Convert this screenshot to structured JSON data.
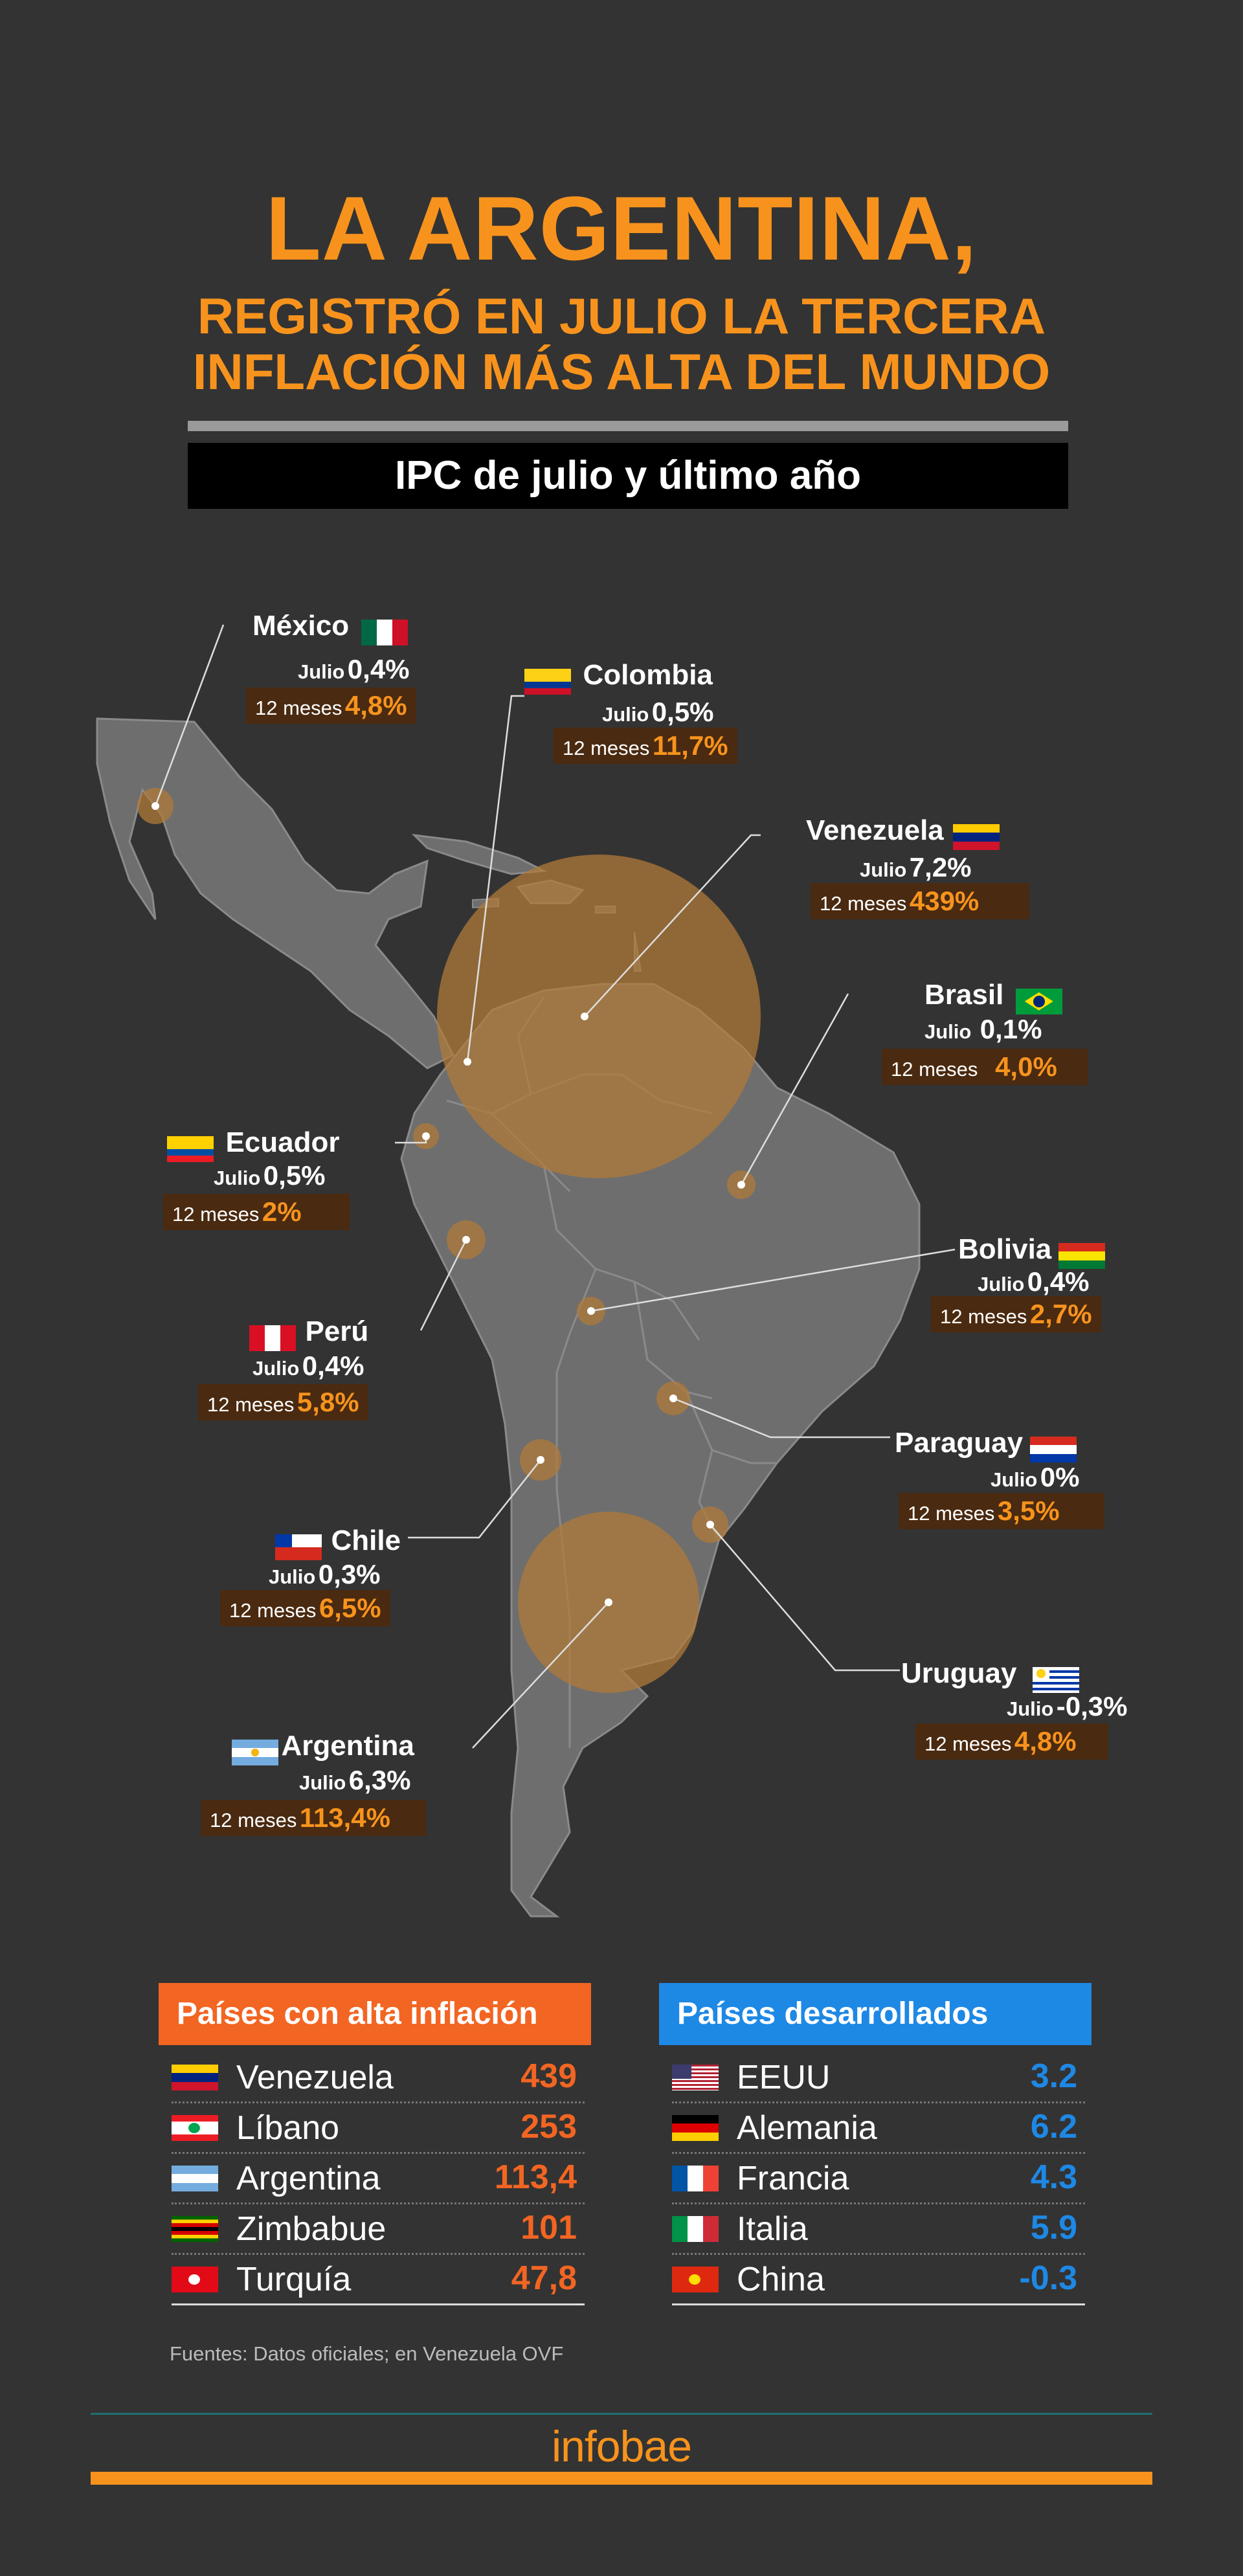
{
  "title": {
    "line1": "LA ARGENTINA,",
    "line2": "REGISTRÓ EN JULIO LA TERCERA",
    "line3": "INFLACIÓN MÁS ALTA DEL MUNDO"
  },
  "subtitle": "IPC de julio y último año",
  "labels": {
    "julio": "Julio",
    "doce_meses": "12 meses"
  },
  "countries": {
    "mexico": {
      "name": "México",
      "julio": "0,4%",
      "doce": "4,8%"
    },
    "colombia": {
      "name": "Colombia",
      "julio": "0,5%",
      "doce": "11,7%"
    },
    "venezuela": {
      "name": "Venezuela",
      "julio": "7,2%",
      "doce": "439%"
    },
    "brasil": {
      "name": "Brasil",
      "julio": "0,1%",
      "doce": "4,0%"
    },
    "ecuador": {
      "name": "Ecuador",
      "julio": "0,5%",
      "doce": "2%"
    },
    "bolivia": {
      "name": "Bolivia",
      "julio": "0,4%",
      "doce": "2,7%"
    },
    "peru": {
      "name": "Perú",
      "julio": "0,4%",
      "doce": "5,8%"
    },
    "paraguay": {
      "name": "Paraguay",
      "julio": "0%",
      "doce": "3,5%"
    },
    "chile": {
      "name": "Chile",
      "julio": "0,3%",
      "doce": "6,5%"
    },
    "uruguay": {
      "name": "Uruguay",
      "julio": "-0,3%",
      "doce": "4,8%"
    },
    "argentina": {
      "name": "Argentina",
      "julio": "6,3%",
      "doce": "113,4%"
    }
  },
  "high_inflation": {
    "header": "Países con alta inflación",
    "color": "#f26522",
    "rows": [
      {
        "name": "Venezuela",
        "value": "439"
      },
      {
        "name": "Líbano",
        "value": "253"
      },
      {
        "name": "Argentina",
        "value": "113,4"
      },
      {
        "name": "Zimbabue",
        "value": "101"
      },
      {
        "name": "Turquía",
        "value": "47,8"
      }
    ]
  },
  "developed": {
    "header": "Países desarrollados",
    "color": "#1e88e5",
    "rows": [
      {
        "name": "EEUU",
        "value": "3.2"
      },
      {
        "name": "Alemania",
        "value": "6.2"
      },
      {
        "name": "Francia",
        "value": "4.3"
      },
      {
        "name": "Italia",
        "value": "5.9"
      },
      {
        "name": "China",
        "value": "-0.3"
      }
    ]
  },
  "sources": "Fuentes: Datos oficiales; en Venezuela OVF",
  "logo": "infobae",
  "colors": {
    "accent": "#f7931d",
    "background": "#333333",
    "box": "#4a2a10"
  }
}
